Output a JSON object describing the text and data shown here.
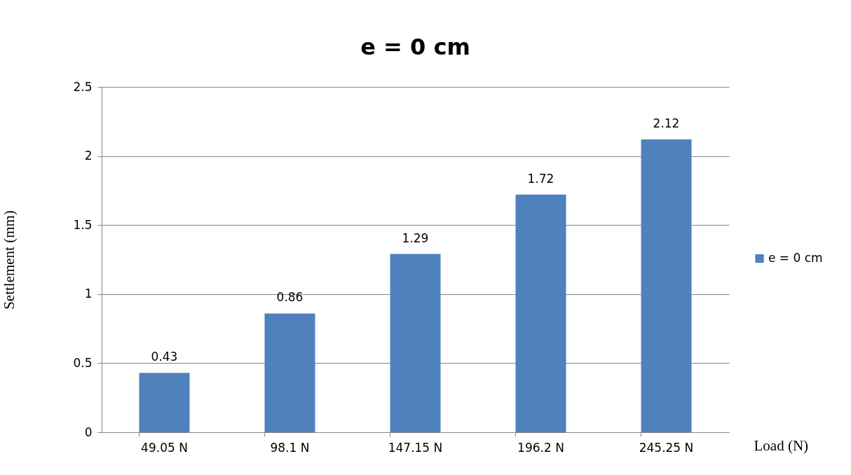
{
  "chart_data": {
    "type": "bar",
    "title": "e = 0 cm",
    "xlabel": "Load (N)",
    "ylabel": "Settlement (mm)",
    "categories": [
      "49.05 N",
      "98.1 N",
      "147.15 N",
      "196.2 N",
      "245.25 N"
    ],
    "series": [
      {
        "name": "e = 0 cm",
        "color": "#4f81bd",
        "values": [
          0.43,
          0.86,
          1.29,
          1.72,
          2.12
        ]
      }
    ],
    "ylim": [
      0,
      2.5
    ],
    "yticks": [
      0,
      0.5,
      1,
      1.5,
      2,
      2.5
    ],
    "grid": "y",
    "legend": "right",
    "data_labels": true
  }
}
